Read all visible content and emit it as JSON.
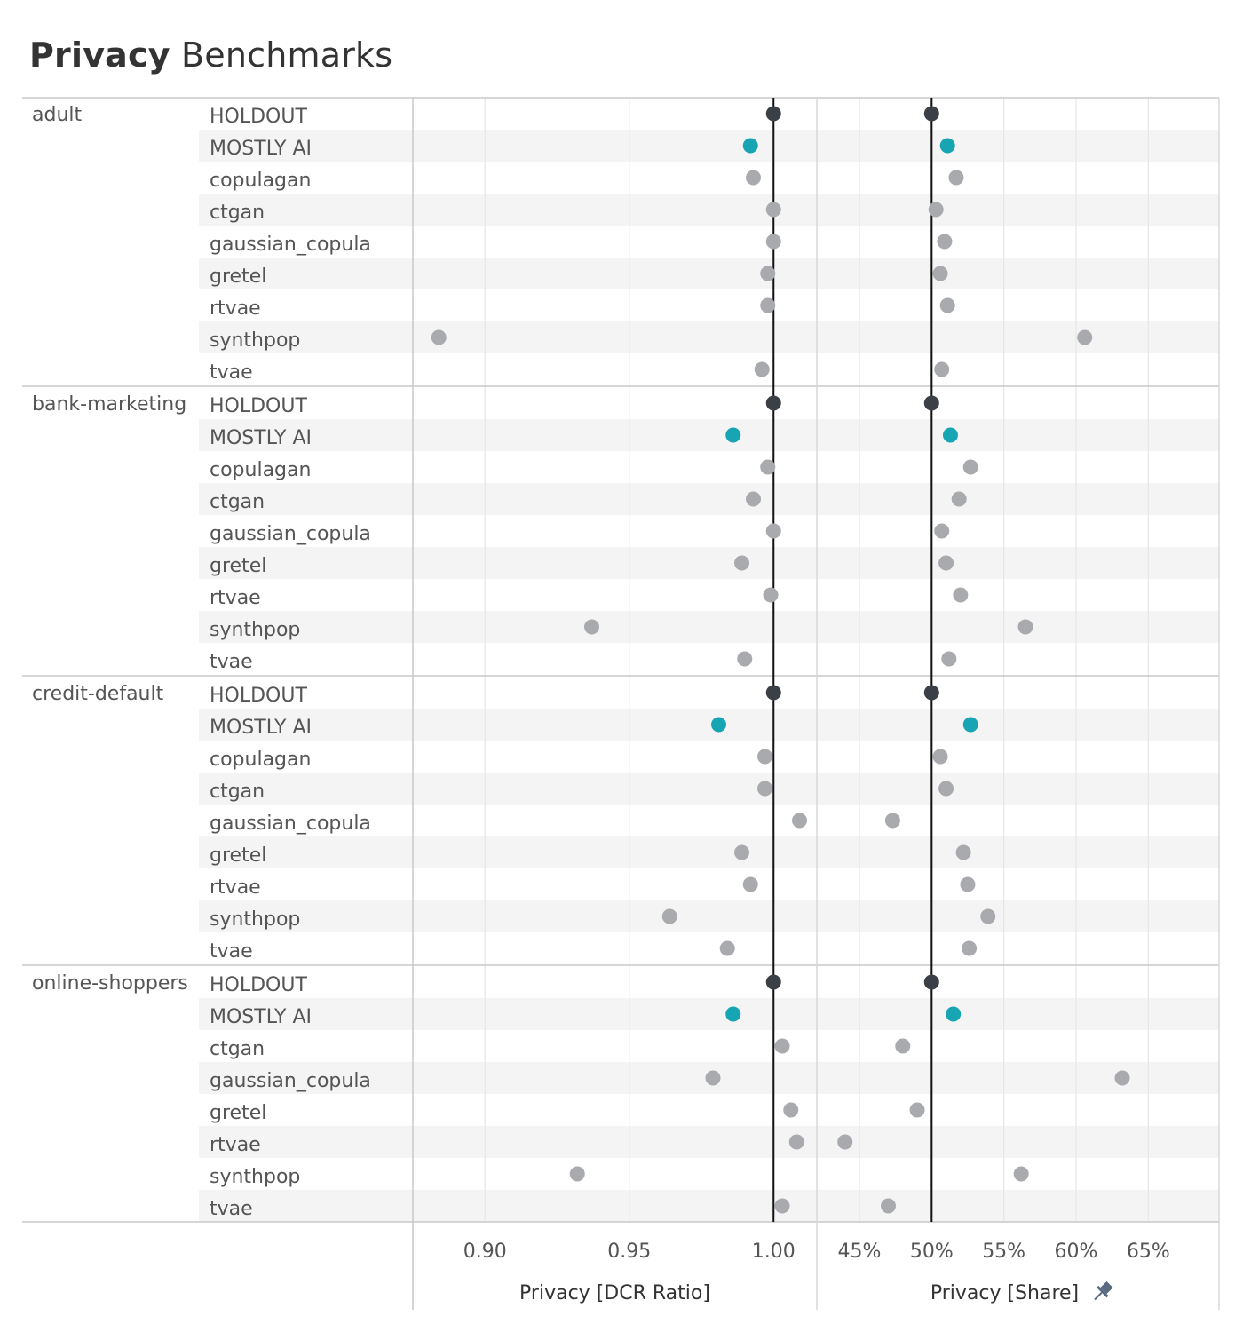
{
  "title": {
    "bold": "Privacy",
    "rest": "Benchmarks"
  },
  "colors": {
    "holdout": "#3b3f46",
    "mostly_ai": "#17a5b4",
    "other": "#a8aaae"
  },
  "chart_data": [
    {
      "type": "scatter",
      "name": "dcr",
      "xlabel": "Privacy [DCR Ratio]",
      "xlim": [
        0.875,
        1.015
      ],
      "reference": 1.0,
      "ticks": [
        {
          "value": 0.9,
          "label": "0.90"
        },
        {
          "value": 0.95,
          "label": "0.95"
        },
        {
          "value": 1.0,
          "label": "1.00"
        }
      ]
    },
    {
      "type": "scatter",
      "name": "share",
      "xlabel": "Privacy [Share]",
      "xlim": [
        0.4205,
        0.699
      ],
      "reference": 0.5,
      "ticks": [
        {
          "value": 0.45,
          "label": "45%"
        },
        {
          "value": 0.5,
          "label": "50%"
        },
        {
          "value": 0.55,
          "label": "55%"
        },
        {
          "value": 0.6,
          "label": "60%"
        },
        {
          "value": 0.65,
          "label": "65%"
        }
      ]
    }
  ],
  "groups": [
    {
      "dataset": "adult",
      "rows": [
        {
          "method": "HOLDOUT",
          "dcr": 1.0,
          "share": 0.5
        },
        {
          "method": "MOSTLY AI",
          "dcr": 0.992,
          "share": 0.511
        },
        {
          "method": "copulagan",
          "dcr": 0.993,
          "share": 0.517
        },
        {
          "method": "ctgan",
          "dcr": 1.0,
          "share": 0.503
        },
        {
          "method": "gaussian_copula",
          "dcr": 1.0,
          "share": 0.509
        },
        {
          "method": "gretel",
          "dcr": 0.998,
          "share": 0.506
        },
        {
          "method": "rtvae",
          "dcr": 0.998,
          "share": 0.511
        },
        {
          "method": "synthpop",
          "dcr": 0.884,
          "share": 0.606
        },
        {
          "method": "tvae",
          "dcr": 0.996,
          "share": 0.507
        }
      ]
    },
    {
      "dataset": "bank-marketing",
      "rows": [
        {
          "method": "HOLDOUT",
          "dcr": 1.0,
          "share": 0.5
        },
        {
          "method": "MOSTLY AI",
          "dcr": 0.986,
          "share": 0.513
        },
        {
          "method": "copulagan",
          "dcr": 0.998,
          "share": 0.527
        },
        {
          "method": "ctgan",
          "dcr": 0.993,
          "share": 0.519
        },
        {
          "method": "gaussian_copula",
          "dcr": 1.0,
          "share": 0.507
        },
        {
          "method": "gretel",
          "dcr": 0.989,
          "share": 0.51
        },
        {
          "method": "rtvae",
          "dcr": 0.999,
          "share": 0.52
        },
        {
          "method": "synthpop",
          "dcr": 0.937,
          "share": 0.565
        },
        {
          "method": "tvae",
          "dcr": 0.99,
          "share": 0.512
        }
      ]
    },
    {
      "dataset": "credit-default",
      "rows": [
        {
          "method": "HOLDOUT",
          "dcr": 1.0,
          "share": 0.5
        },
        {
          "method": "MOSTLY AI",
          "dcr": 0.981,
          "share": 0.527
        },
        {
          "method": "copulagan",
          "dcr": 0.997,
          "share": 0.506
        },
        {
          "method": "ctgan",
          "dcr": 0.997,
          "share": 0.51
        },
        {
          "method": "gaussian_copula",
          "dcr": 1.009,
          "share": 0.473
        },
        {
          "method": "gretel",
          "dcr": 0.989,
          "share": 0.522
        },
        {
          "method": "rtvae",
          "dcr": 0.992,
          "share": 0.525
        },
        {
          "method": "synthpop",
          "dcr": 0.964,
          "share": 0.539
        },
        {
          "method": "tvae",
          "dcr": 0.984,
          "share": 0.526
        }
      ]
    },
    {
      "dataset": "online-shoppers",
      "rows": [
        {
          "method": "HOLDOUT",
          "dcr": 1.0,
          "share": 0.5
        },
        {
          "method": "MOSTLY AI",
          "dcr": 0.986,
          "share": 0.515
        },
        {
          "method": "ctgan",
          "dcr": 1.003,
          "share": 0.48
        },
        {
          "method": "gaussian_copula",
          "dcr": 0.979,
          "share": 0.632
        },
        {
          "method": "gretel",
          "dcr": 1.006,
          "share": 0.49
        },
        {
          "method": "rtvae",
          "dcr": 1.008,
          "share": 0.44
        },
        {
          "method": "synthpop",
          "dcr": 0.932,
          "share": 0.562
        },
        {
          "method": "tvae",
          "dcr": 1.003,
          "share": 0.47
        }
      ]
    }
  ]
}
